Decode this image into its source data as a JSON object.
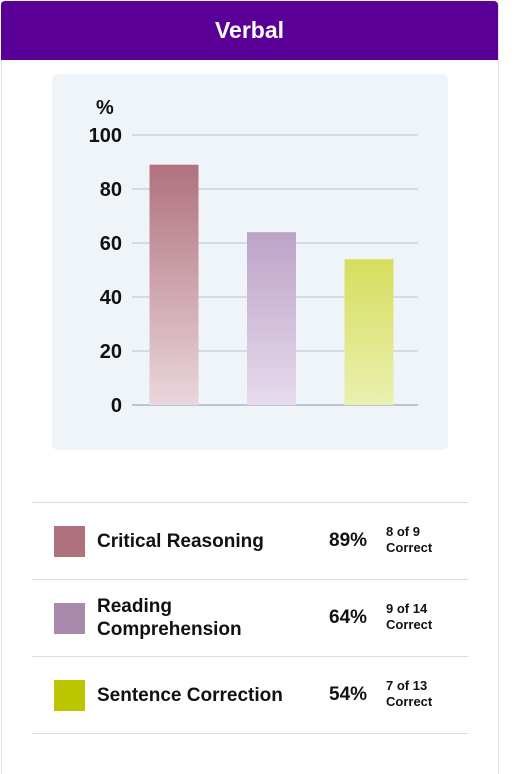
{
  "header": {
    "title": "Verbal"
  },
  "chart_data": {
    "type": "bar",
    "ylabel": "%",
    "ylim": [
      0,
      100
    ],
    "yticks": [
      "0",
      "20",
      "40",
      "60",
      "80",
      "100"
    ],
    "grid": true,
    "categories": [
      "Critical Reasoning",
      "Reading Comprehension",
      "Sentence Correction"
    ],
    "values": [
      89,
      64,
      54
    ],
    "colors": [
      {
        "top": "#b0727e",
        "bottom": "#ead6dc"
      },
      {
        "top": "#bda2c7",
        "bottom": "#e6dbee"
      },
      {
        "top": "#d5de5e",
        "bottom": "#eaf0b0"
      }
    ]
  },
  "legend": [
    {
      "label": "Critical Reasoning",
      "percent": "89%",
      "correct_line1": "8 of 9",
      "correct_line2": "Correct",
      "color": "#b0727e"
    },
    {
      "label": "Reading Comprehension",
      "percent": "64%",
      "correct_line1": "9 of 14",
      "correct_line2": "Correct",
      "color": "#a98aad"
    },
    {
      "label": "Sentence Correction",
      "percent": "54%",
      "correct_line1": "7 of 13",
      "correct_line2": "Correct",
      "color": "#bcc600"
    }
  ]
}
